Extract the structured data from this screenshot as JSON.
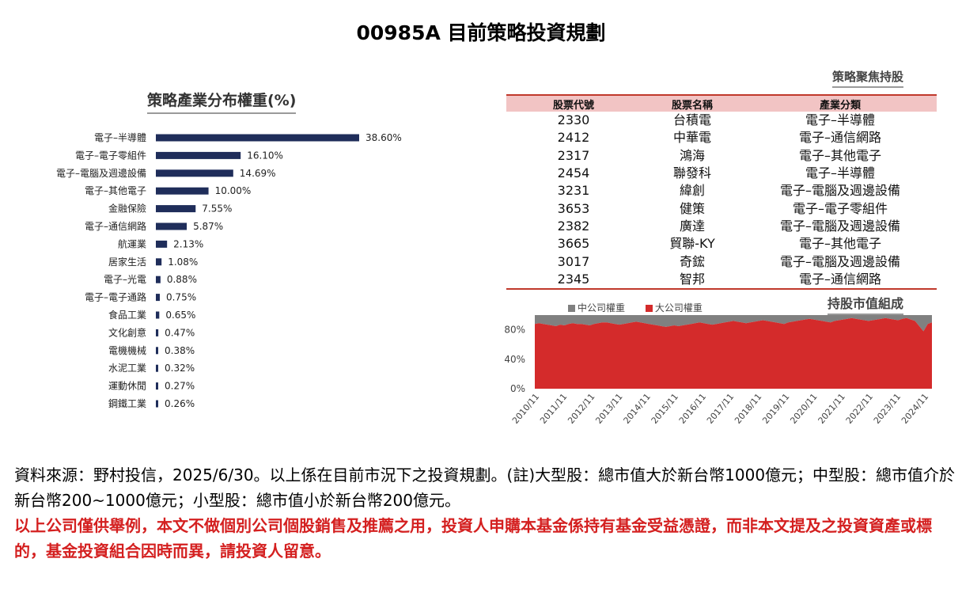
{
  "title": "00985A 目前策略投資規劃",
  "chart_data": [
    {
      "type": "bar",
      "orientation": "horizontal",
      "title": "策略產業分布權重(%)",
      "categories": [
        "電子–半導體",
        "電子–電子零組件",
        "電子–電腦及週邊設備",
        "電子–其他電子",
        "金融保險",
        "電子–通信網路",
        "航運業",
        "居家生活",
        "電子–光電",
        "電子–電子通路",
        "食品工業",
        "文化創意",
        "電機機械",
        "水泥工業",
        "運動休閒",
        "鋼鐵工業"
      ],
      "values": [
        38.6,
        16.1,
        14.69,
        10.0,
        7.55,
        5.87,
        2.13,
        1.08,
        0.88,
        0.75,
        0.65,
        0.47,
        0.38,
        0.32,
        0.27,
        0.26
      ],
      "value_labels": [
        "38.60%",
        "16.10%",
        "14.69%",
        "10.00%",
        "7.55%",
        "5.87%",
        "2.13%",
        "1.08%",
        "0.88%",
        "0.75%",
        "0.65%",
        "0.47%",
        "0.38%",
        "0.32%",
        "0.27%",
        "0.26%"
      ],
      "color": "#1f2d5a",
      "xlim": [
        0,
        40
      ]
    },
    {
      "type": "area",
      "title": "持股市值組成",
      "series": [
        {
          "name": "中公司權重",
          "color": "#808080"
        },
        {
          "name": "大公司權重",
          "color": "#d42b2b"
        }
      ],
      "x_ticks": [
        "2010/11",
        "2011/11",
        "2012/11",
        "2013/11",
        "2014/11",
        "2015/11",
        "2016/11",
        "2017/11",
        "2018/11",
        "2019/11",
        "2020/11",
        "2021/11",
        "2022/11",
        "2023/11",
        "2024/11"
      ],
      "y_ticks": [
        "0%",
        "40%",
        "80%"
      ],
      "ylim": [
        0,
        100
      ],
      "large_cap_pct": [
        88,
        89,
        88,
        87,
        86,
        85,
        87,
        86,
        88,
        89,
        88,
        88,
        87,
        86,
        88,
        89,
        90,
        90,
        89,
        88,
        87,
        88,
        89,
        90,
        91,
        90,
        89,
        88,
        87,
        86,
        85,
        84,
        85,
        86,
        85,
        86,
        87,
        88,
        89,
        90,
        89,
        88,
        87,
        88,
        89,
        90,
        91,
        92,
        91,
        90,
        89,
        90,
        91,
        92,
        93,
        92,
        91,
        90,
        89,
        88,
        90,
        91,
        92,
        93,
        94,
        95,
        94,
        93,
        92,
        91,
        90,
        92,
        93,
        94,
        95,
        96,
        95,
        94,
        93,
        92,
        93,
        94,
        95,
        96,
        95,
        94,
        93,
        95,
        96,
        94,
        92,
        85,
        78,
        88,
        90
      ],
      "mid_cap_pct": [
        12,
        11,
        12,
        13,
        14,
        15,
        13,
        14,
        12,
        11,
        12,
        12,
        13,
        14,
        12,
        11,
        10,
        10,
        11,
        12,
        13,
        12,
        11,
        10,
        9,
        10,
        11,
        12,
        13,
        14,
        15,
        16,
        15,
        14,
        15,
        14,
        13,
        12,
        11,
        10,
        11,
        12,
        13,
        12,
        11,
        10,
        9,
        8,
        9,
        10,
        11,
        10,
        9,
        8,
        7,
        8,
        9,
        10,
        11,
        12,
        10,
        9,
        8,
        7,
        6,
        5,
        6,
        7,
        8,
        9,
        10,
        8,
        7,
        6,
        5,
        4,
        5,
        6,
        7,
        8,
        7,
        6,
        5,
        4,
        5,
        6,
        7,
        5,
        4,
        6,
        8,
        15,
        22,
        12,
        10
      ]
    }
  ],
  "table": {
    "title": "策略聚焦持股",
    "headers": [
      "股票代號",
      "股票名稱",
      "產業分類"
    ],
    "rows": [
      [
        "2330",
        "台積電",
        "電子–半導體"
      ],
      [
        "2412",
        "中華電",
        "電子–通信網路"
      ],
      [
        "2317",
        "鴻海",
        "電子–其他電子"
      ],
      [
        "2454",
        "聯發科",
        "電子–半導體"
      ],
      [
        "3231",
        "緯創",
        "電子–電腦及週邊設備"
      ],
      [
        "3653",
        "健策",
        "電子–電子零組件"
      ],
      [
        "2382",
        "廣達",
        "電子–電腦及週邊設備"
      ],
      [
        "3665",
        "貿聯-KY",
        "電子–其他電子"
      ],
      [
        "3017",
        "奇鋐",
        "電子–電腦及週邊設備"
      ],
      [
        "2345",
        "智邦",
        "電子–通信網路"
      ]
    ]
  },
  "footnote": {
    "source": "資料來源：野村投信，2025/6/30。以上係在目前市況下之投資規劃。(註)大型股：總市值大於新台幣1000億元；中型股：總市值介於新台幣200~1000億元；小型股：總市值小於新台幣200億元。",
    "disclaimer": "以上公司僅供舉例，本文不做個別公司個股銷售及推薦之用，投資人申購本基金係持有基金受益憑證，而非本文提及之投資資產或標的，基金投資組合因時而異，請投資人留意。"
  }
}
